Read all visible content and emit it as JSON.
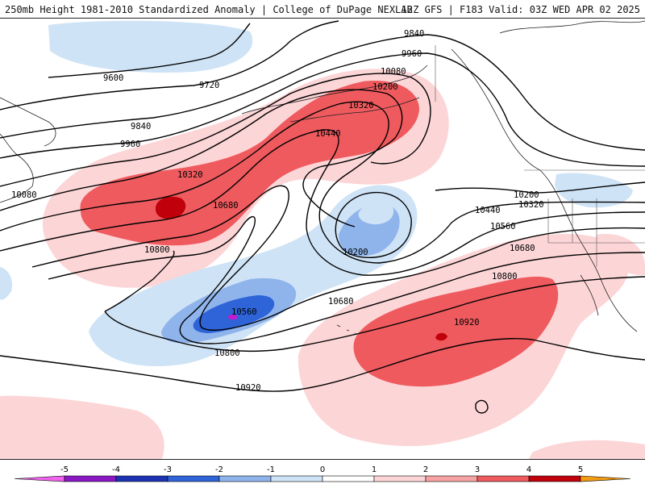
{
  "header": {
    "left_title": "250mb Height 1981-2010 Standardized Anomaly | College of DuPage NEXLAB",
    "right_title": "12Z GFS | F183 Valid: 03Z WED APR 02 2025"
  },
  "contour_labels": {
    "c9600": "9600",
    "c9720": "9720",
    "c9840a": "9840",
    "c9840b": "9840",
    "c9960a": "9960",
    "c9960b": "9960",
    "c10080a": "10080",
    "c10080b": "10080",
    "c10200a": "10200",
    "c10200b": "10200",
    "c10200c": "10200",
    "c10320a": "10320",
    "c10320b": "10320",
    "c10320c": "10320",
    "c10440a": "10440",
    "c10440b": "10440",
    "c10560a": "10560",
    "c10560b": "10560",
    "c10680a": "10680",
    "c10680b": "10680",
    "c10680c": "10680",
    "c10800a": "10800",
    "c10800b": "10800",
    "c10800c": "10800",
    "c10920a": "10920",
    "c10920b": "10920"
  },
  "legend": {
    "ticks": [
      "-5",
      "-4",
      "-3",
      "-2",
      "-1",
      "0",
      "1",
      "2",
      "3",
      "4",
      "5"
    ],
    "colors": [
      "#f064ee",
      "#8a16c6",
      "#1b33b3",
      "#2e64d8",
      "#8fb4ec",
      "#cfe3f6",
      "#ffffff",
      "#fcd5d7",
      "#f7a2a4",
      "#ee5a5e",
      "#c0000a",
      "#f39c12",
      "#f7c64a"
    ]
  },
  "colors": {
    "neg1": "#cfe3f6",
    "neg2": "#8fb4ec",
    "neg3": "#2e64d8",
    "neg4": "#1b33b3",
    "neg5": "#c21bcf",
    "pos1": "#fcd5d7",
    "pos2": "#f7a2a4",
    "pos3": "#ee5a5e",
    "pos4": "#c0000a"
  }
}
